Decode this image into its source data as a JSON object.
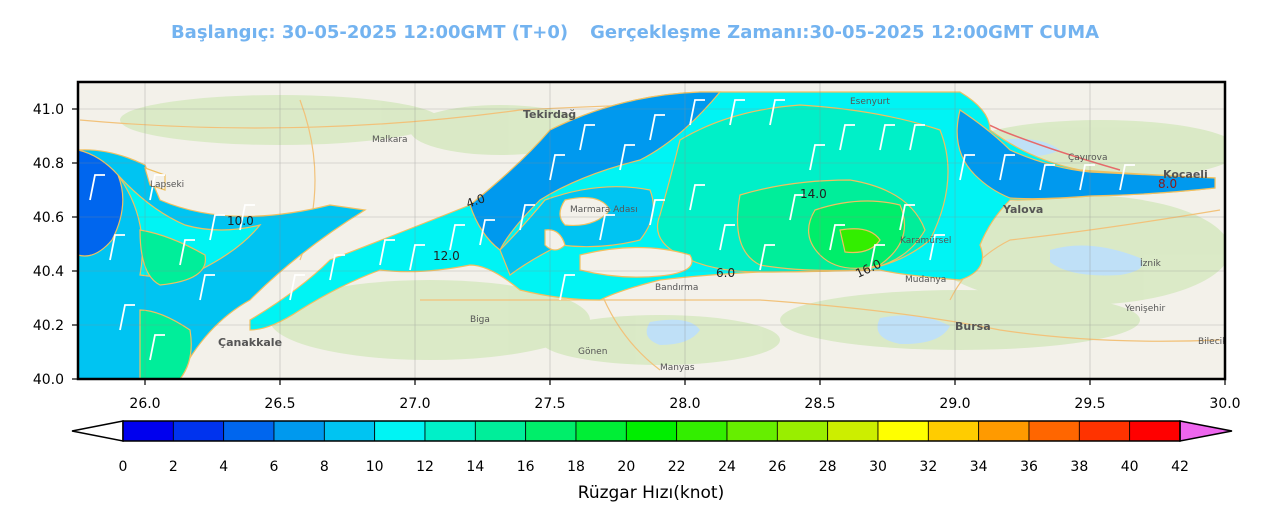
{
  "header": {
    "start_label": "Başlangıç: 30-05-2025 12:00GMT (T+0)",
    "valid_label": "Gerçekleşme Zamanı:30-05-2025 12:00GMT CUMA"
  },
  "map": {
    "x_ticks": [
      "26.0",
      "26.5",
      "27.0",
      "27.5",
      "28.0",
      "28.5",
      "29.0",
      "29.5",
      "30.0"
    ],
    "y_ticks": [
      "41.0",
      "40.8",
      "40.6",
      "40.4",
      "40.2",
      "40.0"
    ],
    "places": [
      {
        "name": "Tekirdağ",
        "bold": true
      },
      {
        "name": "Çanakkale",
        "bold": true
      },
      {
        "name": "Yalova",
        "bold": true
      },
      {
        "name": "Bursa",
        "bold": true
      },
      {
        "name": "Kocaeli",
        "bold": true
      },
      {
        "name": "Bandırma",
        "bold": false
      },
      {
        "name": "Marmara Adası",
        "bold": false
      },
      {
        "name": "Malkara",
        "bold": false
      },
      {
        "name": "Esenyurt",
        "bold": false
      },
      {
        "name": "Çayırova",
        "bold": false
      },
      {
        "name": "Karamürsel",
        "bold": false
      },
      {
        "name": "Mudanya",
        "bold": false
      },
      {
        "name": "Gönen",
        "bold": false
      },
      {
        "name": "Manyas",
        "bold": false
      },
      {
        "name": "Biga",
        "bold": false
      },
      {
        "name": "Lapseki",
        "bold": false
      },
      {
        "name": "İznik",
        "bold": false
      },
      {
        "name": "Yenişehir",
        "bold": false
      },
      {
        "name": "Bilecik",
        "bold": false
      }
    ],
    "contour_labels": [
      "4.0",
      "6.0",
      "8.0",
      "10.0",
      "12.0",
      "14.0",
      "16.0"
    ],
    "colors": {
      "water": "#bfe0f7",
      "land": "#f3f1ea",
      "green_area": "#d8e9c3"
    }
  },
  "colorbar": {
    "title": "Rüzgar Hızı(knot)",
    "ticks": [
      "0",
      "2",
      "4",
      "6",
      "8",
      "10",
      "12",
      "14",
      "16",
      "18",
      "20",
      "22",
      "24",
      "26",
      "28",
      "30",
      "32",
      "34",
      "36",
      "38",
      "40",
      "42"
    ],
    "colors": [
      "#0000ee",
      "#0033ee",
      "#0066ee",
      "#0099ee",
      "#00c4f2",
      "#00f4f4",
      "#00f0c8",
      "#00ee9a",
      "#00ee6a",
      "#00ee36",
      "#00ee00",
      "#33ee00",
      "#66ee00",
      "#99ee00",
      "#ccee00",
      "#ffff00",
      "#ffcc00",
      "#ff9a00",
      "#ff6600",
      "#ff3300",
      "#ff0000"
    ],
    "under_color": "#ffffff",
    "over_color": "#ee66ee"
  }
}
